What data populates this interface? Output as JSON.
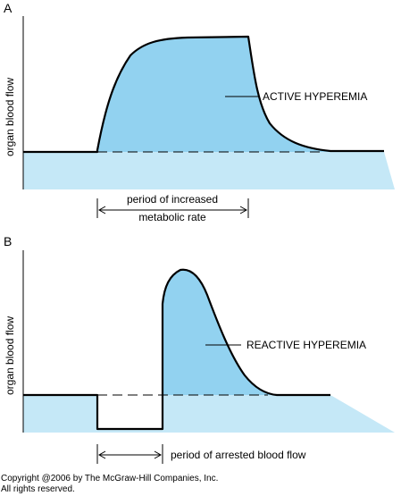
{
  "panel_a": {
    "letter": "A",
    "ylabel": "organ blood flow",
    "curve_label": "ACTIVE HYPEREMIA",
    "period_line1": "period of increased",
    "period_line2": "metabolic rate"
  },
  "panel_b": {
    "letter": "B",
    "ylabel": "organ blood flow",
    "curve_label": "REACTIVE HYPEREMIA",
    "period_label": "period of arrested blood flow"
  },
  "copyright": {
    "line1": "Copyright @2006 by The McGraw-Hill Companies, Inc.",
    "line2": "All rights reserved."
  },
  "colors": {
    "fill_light": "#c5e8f7",
    "fill_medium": "#92d2f0",
    "line": "#000000"
  }
}
